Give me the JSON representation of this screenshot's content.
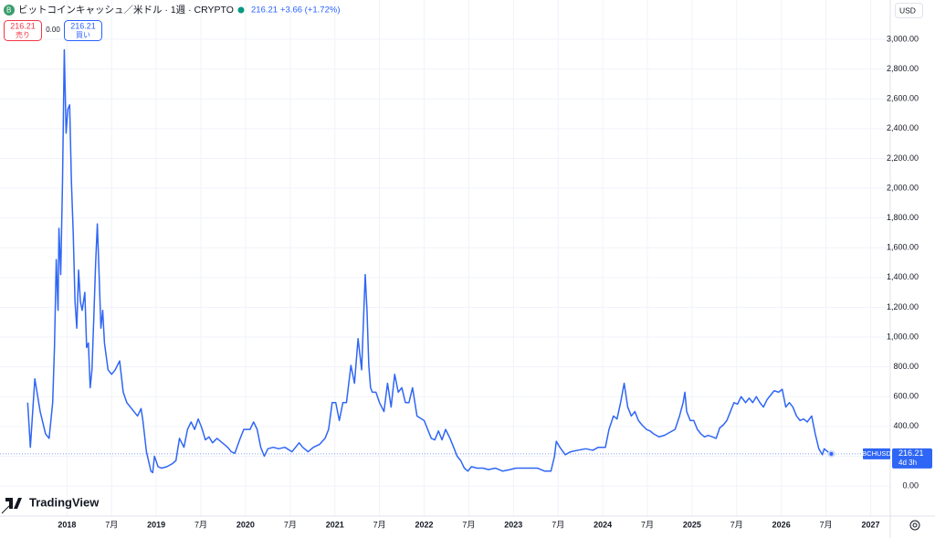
{
  "header": {
    "title": "ビットコインキャッシュ／米ドル · 1週 · CRYPTO",
    "price": "216.21",
    "change": "+3.66 (+1.72%)",
    "sell": {
      "price": "216.21",
      "label": "売り"
    },
    "spread": "0.00",
    "buy": {
      "price": "216.21",
      "label": "買い"
    },
    "currency": "USD"
  },
  "logo": "TradingView",
  "chart_data": {
    "type": "line",
    "color": "#2f66f5",
    "xlim": [
      2017.25,
      2027.22
    ],
    "xticks": [
      2018,
      {
        "value": 2018.5,
        "label": "7月"
      },
      2019,
      {
        "value": 2019.5,
        "label": "7月"
      },
      2020,
      {
        "value": 2020.5,
        "label": "7月"
      },
      2021,
      {
        "value": 2021.5,
        "label": "7月"
      },
      2022,
      {
        "value": 2022.5,
        "label": "7月"
      },
      2023,
      {
        "value": 2023.5,
        "label": "7月"
      },
      2024,
      {
        "value": 2024.5,
        "label": "7月"
      },
      2025,
      {
        "value": 2025.5,
        "label": "7月"
      },
      2026,
      {
        "value": 2026.5,
        "label": "7月"
      },
      2027
    ],
    "ylim": [
      -202,
      3264
    ],
    "yticks": [
      {
        "value": 0,
        "label": "0.00"
      },
      {
        "value": 200,
        "label": "200.00"
      },
      {
        "value": 400,
        "label": "400.00"
      },
      {
        "value": 600,
        "label": "600.00"
      },
      {
        "value": 800,
        "label": "800.00"
      },
      {
        "value": 1000,
        "label": "1,000.00"
      },
      {
        "value": 1200,
        "label": "1,200.00"
      },
      {
        "value": 1400,
        "label": "1,400.00"
      },
      {
        "value": 1600,
        "label": "1,600.00"
      },
      {
        "value": 1800,
        "label": "1,800.00"
      },
      {
        "value": 2000,
        "label": "2,000.00"
      },
      {
        "value": 2200,
        "label": "2,200.00"
      },
      {
        "value": 2400,
        "label": "2,400.00"
      },
      {
        "value": 2600,
        "label": "2,600.00"
      },
      {
        "value": 2800,
        "label": "2,800.00"
      },
      {
        "value": 3000,
        "label": "3,000.00"
      }
    ],
    "grid": true,
    "price_tag": {
      "symbol": "BCHUSD",
      "value": 216.21,
      "countdown": "4d 3h"
    },
    "x": [
      2017.56,
      2017.59,
      2017.64,
      2017.7,
      2017.76,
      2017.8,
      2017.84,
      2017.86,
      2017.88,
      2017.9,
      2017.91,
      2017.93,
      2017.95,
      2017.97,
      2017.99,
      2018.01,
      2018.03,
      2018.05,
      2018.07,
      2018.09,
      2018.11,
      2018.13,
      2018.15,
      2018.17,
      2018.2,
      2018.22,
      2018.24,
      2018.26,
      2018.28,
      2018.3,
      2018.32,
      2018.34,
      2018.36,
      2018.38,
      2018.4,
      2018.42,
      2018.46,
      2018.5,
      2018.54,
      2018.59,
      2018.63,
      2018.67,
      2018.71,
      2018.75,
      2018.79,
      2018.83,
      2018.85,
      2018.89,
      2018.94,
      2018.96,
      2018.98,
      2019.02,
      2019.06,
      2019.12,
      2019.18,
      2019.22,
      2019.26,
      2019.31,
      2019.35,
      2019.39,
      2019.43,
      2019.47,
      2019.51,
      2019.55,
      2019.59,
      2019.63,
      2019.68,
      2019.74,
      2019.8,
      2019.84,
      2019.88,
      2019.94,
      2019.98,
      2020.05,
      2020.09,
      2020.13,
      2020.17,
      2020.21,
      2020.25,
      2020.31,
      2020.37,
      2020.44,
      2020.52,
      2020.6,
      2020.64,
      2020.7,
      2020.76,
      2020.83,
      2020.89,
      2020.93,
      2020.97,
      2021.01,
      2021.05,
      2021.09,
      2021.13,
      2021.18,
      2021.22,
      2021.26,
      2021.3,
      2021.34,
      2021.36,
      2021.38,
      2021.4,
      2021.42,
      2021.46,
      2021.5,
      2021.55,
      2021.59,
      2021.63,
      2021.67,
      2021.71,
      2021.75,
      2021.79,
      2021.83,
      2021.87,
      2021.92,
      2022.0,
      2022.08,
      2022.12,
      2022.16,
      2022.2,
      2022.24,
      2022.29,
      2022.33,
      2022.37,
      2022.41,
      2022.45,
      2022.49,
      2022.53,
      2022.59,
      2022.66,
      2022.72,
      2022.8,
      2022.88,
      2022.96,
      2023.03,
      2023.11,
      2023.19,
      2023.27,
      2023.35,
      2023.42,
      2023.46,
      2023.48,
      2023.52,
      2023.58,
      2023.64,
      2023.72,
      2023.81,
      2023.89,
      2023.95,
      2024.03,
      2024.07,
      2024.12,
      2024.16,
      2024.2,
      2024.24,
      2024.28,
      2024.32,
      2024.36,
      2024.4,
      2024.44,
      2024.49,
      2024.53,
      2024.57,
      2024.63,
      2024.69,
      2024.75,
      2024.81,
      2024.86,
      2024.9,
      2024.92,
      2024.94,
      2024.98,
      2025.02,
      2025.06,
      2025.1,
      2025.14,
      2025.18,
      2025.23,
      2025.27,
      2025.31,
      2025.35,
      2025.39,
      2025.43,
      2025.47,
      2025.51,
      2025.55,
      2025.6,
      2025.64,
      2025.68,
      2025.72,
      2025.76,
      2025.8,
      2025.84,
      2025.88,
      2025.92,
      2025.97,
      2026.01,
      2026.05,
      2026.09,
      2026.13,
      2026.17,
      2026.21,
      2026.25,
      2026.29,
      2026.34,
      2026.38,
      2026.42,
      2026.46,
      2026.48,
      2026.52,
      2026.56
    ],
    "values": [
      560,
      260,
      720,
      500,
      350,
      320,
      560,
      930,
      1520,
      1180,
      1730,
      1420,
      2040,
      2930,
      2370,
      2530,
      2560,
      2040,
      1700,
      1240,
      1060,
      1450,
      1240,
      1180,
      1300,
      930,
      960,
      660,
      780,
      1120,
      1480,
      1760,
      1420,
      1060,
      1180,
      960,
      780,
      750,
      780,
      840,
      630,
      560,
      530,
      500,
      470,
      520,
      440,
      230,
      100,
      90,
      200,
      130,
      120,
      130,
      150,
      170,
      320,
      260,
      380,
      430,
      380,
      450,
      390,
      310,
      330,
      290,
      320,
      290,
      260,
      230,
      220,
      320,
      380,
      380,
      430,
      380,
      260,
      200,
      250,
      260,
      250,
      260,
      230,
      290,
      260,
      230,
      260,
      280,
      320,
      380,
      560,
      560,
      440,
      560,
      560,
      810,
      690,
      990,
      780,
      1420,
      1180,
      810,
      660,
      630,
      630,
      560,
      500,
      690,
      530,
      750,
      630,
      660,
      560,
      560,
      660,
      470,
      440,
      320,
      310,
      370,
      310,
      380,
      320,
      260,
      200,
      170,
      120,
      100,
      130,
      120,
      120,
      110,
      120,
      100,
      110,
      120,
      120,
      120,
      120,
      100,
      100,
      200,
      300,
      260,
      210,
      230,
      240,
      250,
      240,
      260,
      260,
      380,
      470,
      450,
      560,
      690,
      530,
      470,
      500,
      440,
      410,
      380,
      370,
      350,
      330,
      340,
      360,
      380,
      470,
      560,
      630,
      500,
      440,
      440,
      380,
      350,
      330,
      340,
      330,
      320,
      390,
      410,
      440,
      500,
      560,
      550,
      600,
      560,
      590,
      560,
      600,
      560,
      530,
      580,
      610,
      640,
      630,
      650,
      530,
      560,
      530,
      470,
      440,
      450,
      430,
      470,
      350,
      250,
      210,
      250,
      230,
      216.21
    ]
  }
}
